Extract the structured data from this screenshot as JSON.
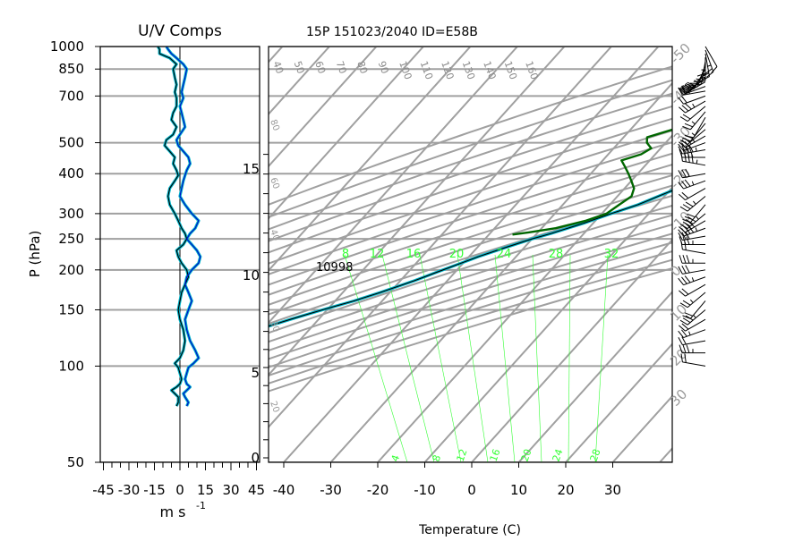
{
  "header": {
    "title": "15P 151023/2040 ID=E58B",
    "uv_title": "U/V Comps"
  },
  "chart_data": [
    {
      "type": "line",
      "name": "uv_components",
      "title": "U/V Comps",
      "ylabel": "P (hPa)",
      "xlabel": "m s",
      "xlabel_unit_superscript": "-1",
      "y_scale": "log",
      "ylim": [
        1000,
        50
      ],
      "xlim": [
        -45,
        45
      ],
      "y_ticks": [
        50,
        100,
        150,
        200,
        250,
        300,
        400,
        500,
        700,
        850,
        1000
      ],
      "x_ticks": [
        -45,
        -30,
        -15,
        0,
        15,
        30,
        45
      ],
      "x_tick_labels": [
        "-45",
        "-30",
        "-15",
        "0",
        "15",
        "30",
        "45"
      ],
      "grid": "horizontal at labeled pressures",
      "colors": {
        "u": "#000000",
        "v": "#0000cc",
        "highlight": "#00b4c8"
      },
      "series": [
        {
          "id": "u",
          "color": "#000000",
          "points": [
            [
              -13,
              1000
            ],
            [
              -12,
              980
            ],
            [
              -12,
              950
            ],
            [
              -6,
              920
            ],
            [
              -2,
              880
            ],
            [
              -4,
              850
            ],
            [
              -3,
              800
            ],
            [
              -2,
              760
            ],
            [
              -3,
              720
            ],
            [
              -2,
              690
            ],
            [
              -2,
              650
            ],
            [
              -4,
              620
            ],
            [
              -5,
              590
            ],
            [
              -2,
              560
            ],
            [
              -4,
              530
            ],
            [
              -8,
              510
            ],
            [
              -9,
              490
            ],
            [
              -6,
              470
            ],
            [
              -3,
              450
            ],
            [
              -4,
              430
            ],
            [
              -2,
              410
            ],
            [
              -1,
              395
            ],
            [
              -3,
              380
            ],
            [
              -6,
              360
            ],
            [
              -7,
              340
            ],
            [
              -6,
              320
            ],
            [
              -3,
              300
            ],
            [
              -1,
              285
            ],
            [
              1,
              270
            ],
            [
              3,
              260
            ],
            [
              4,
              250
            ],
            [
              2,
              240
            ],
            [
              -2,
              230
            ],
            [
              -1,
              220
            ],
            [
              1,
              210
            ],
            [
              4,
              200
            ],
            [
              5,
              190
            ],
            [
              3,
              180
            ],
            [
              1,
              170
            ],
            [
              0,
              160
            ],
            [
              -1,
              150
            ],
            [
              0,
              140
            ],
            [
              2,
              130
            ],
            [
              3,
              120
            ],
            [
              2,
              112
            ],
            [
              0,
              106
            ],
            [
              -3,
              102
            ],
            [
              -1,
              99
            ],
            [
              0,
              95
            ],
            [
              1,
              91
            ],
            [
              0,
              88
            ],
            [
              -2,
              86
            ],
            [
              -5,
              84
            ],
            [
              -3,
              82
            ],
            [
              -1,
              80
            ],
            [
              -1,
              77
            ],
            [
              -2,
              75
            ]
          ]
        },
        {
          "id": "v",
          "color": "#0000cc",
          "points": [
            [
              -8,
              1000
            ],
            [
              -7,
              980
            ],
            [
              -5,
              950
            ],
            [
              -2,
              920
            ],
            [
              0,
              900
            ],
            [
              2,
              880
            ],
            [
              4,
              850
            ],
            [
              3,
              800
            ],
            [
              2,
              760
            ],
            [
              1,
              720
            ],
            [
              2,
              690
            ],
            [
              0,
              650
            ],
            [
              1,
              620
            ],
            [
              2,
              590
            ],
            [
              3,
              560
            ],
            [
              0,
              530
            ],
            [
              -2,
              510
            ],
            [
              -1,
              490
            ],
            [
              2,
              470
            ],
            [
              5,
              450
            ],
            [
              6,
              430
            ],
            [
              4,
              410
            ],
            [
              3,
              395
            ],
            [
              2,
              380
            ],
            [
              1,
              360
            ],
            [
              0,
              340
            ],
            [
              3,
              320
            ],
            [
              7,
              300
            ],
            [
              11,
              285
            ],
            [
              9,
              270
            ],
            [
              6,
              260
            ],
            [
              4,
              250
            ],
            [
              7,
              240
            ],
            [
              10,
              230
            ],
            [
              12,
              220
            ],
            [
              11,
              210
            ],
            [
              7,
              200
            ],
            [
              4,
              190
            ],
            [
              3,
              180
            ],
            [
              5,
              170
            ],
            [
              7,
              160
            ],
            [
              5,
              150
            ],
            [
              3,
              140
            ],
            [
              4,
              130
            ],
            [
              6,
              120
            ],
            [
              9,
              112
            ],
            [
              11,
              106
            ],
            [
              8,
              102
            ],
            [
              5,
              99
            ],
            [
              4,
              95
            ],
            [
              3,
              91
            ],
            [
              4,
              88
            ],
            [
              6,
              86
            ],
            [
              4,
              84
            ],
            [
              2,
              82
            ],
            [
              3,
              80
            ],
            [
              5,
              77
            ],
            [
              4,
              75
            ]
          ]
        }
      ]
    },
    {
      "type": "line",
      "name": "skewt_sounding",
      "title": "15P 151023/2040 ID=E58B",
      "xlabel": "Temperature (C)",
      "y2label": "",
      "y_scale": "log",
      "ylim": [
        1000,
        50
      ],
      "xlim": [
        -40,
        30
      ],
      "x_ticks": [
        -40,
        -30,
        -20,
        -10,
        0,
        10,
        20,
        30
      ],
      "x_tick_labels": [
        "-40",
        "-30",
        "-20",
        "-10",
        "0",
        "10",
        "20",
        "30"
      ],
      "left_height_ticks_km": [
        0,
        5,
        10,
        15
      ],
      "left_height_tick_labels": [
        "0",
        "5",
        "10",
        "15"
      ],
      "height_annotation": "10998",
      "theta_labels": [
        "40",
        "50",
        "60",
        "70",
        "80",
        "90",
        "100",
        "110",
        "120",
        "130",
        "140",
        "150",
        "160"
      ],
      "mixing_ratio_labels_top": [
        "8",
        "12",
        "16",
        "20",
        "24",
        "28",
        "32"
      ],
      "mixing_ratio_labels_bottom": [
        "4",
        "8",
        "12",
        "16",
        "20",
        "24",
        "28"
      ],
      "skewed_isotherm_labels": [
        "-50",
        "-40",
        "-30",
        "-20",
        "-10",
        "0",
        "10",
        "20",
        "30"
      ],
      "moist_adiabat_labels": [
        "80",
        "60",
        "40",
        "30",
        "20"
      ],
      "colors": {
        "grid": "#a0a0a0",
        "mixing_ratio": "#33ff33",
        "temperature": "#000000",
        "temperature_highlight": "#00b4c8",
        "parcel": "#006600"
      },
      "series": [
        {
          "id": "temperature",
          "color": "#000000",
          "points": [
            [
              26,
              1000
            ],
            [
              23,
              970
            ],
            [
              22,
              950
            ],
            [
              25,
              920
            ],
            [
              24,
              900
            ],
            [
              21,
              870
            ],
            [
              20,
              850
            ],
            [
              18,
              800
            ],
            [
              16,
              750
            ],
            [
              14,
              700
            ],
            [
              11,
              650
            ],
            [
              9,
              600
            ],
            [
              6,
              550
            ],
            [
              2,
              500
            ],
            [
              -2,
              450
            ],
            [
              -5,
              400
            ],
            [
              -6,
              380
            ],
            [
              -10,
              350
            ],
            [
              -14,
              320
            ],
            [
              -18,
              300
            ],
            [
              -22,
              280
            ],
            [
              -27,
              260
            ],
            [
              -30,
              250
            ],
            [
              -34,
              235
            ],
            [
              -38,
              220
            ],
            [
              -43,
              200
            ],
            [
              -47,
              185
            ],
            [
              -52,
              170
            ],
            [
              -56,
              160
            ],
            [
              -61,
              150
            ],
            [
              -66,
              140
            ],
            [
              -71,
              130
            ],
            [
              -75,
              120
            ],
            [
              -78,
              110
            ],
            [
              -80,
              100
            ],
            [
              -82,
              98
            ],
            [
              -82,
              95
            ],
            [
              -78,
              92
            ],
            [
              -75,
              90
            ],
            [
              -72,
              87
            ],
            [
              -70,
              84
            ],
            [
              -66,
              80
            ],
            [
              -62,
              77
            ],
            [
              -60,
              75
            ],
            [
              -57,
              73
            ],
            [
              -55,
              72
            ]
          ]
        },
        {
          "id": "parcel",
          "color": "#006600",
          "points": [
            [
              20,
              1000
            ],
            [
              19,
              980
            ],
            [
              18,
              950
            ],
            [
              20,
              930
            ],
            [
              18,
              910
            ],
            [
              19,
              890
            ],
            [
              18,
              870
            ],
            [
              17,
              850
            ],
            [
              15,
              830
            ],
            [
              5,
              810
            ],
            [
              -5,
              800
            ],
            [
              -12,
              790
            ],
            [
              -17,
              770
            ],
            [
              -19,
              740
            ],
            [
              -21,
              700
            ],
            [
              -22,
              660
            ],
            [
              -22,
              620
            ],
            [
              -18,
              590
            ],
            [
              -17,
              570
            ],
            [
              -21,
              550
            ],
            [
              -25,
              520
            ],
            [
              -24,
              500
            ],
            [
              -22,
              480
            ],
            [
              -23,
              460
            ],
            [
              -26,
              440
            ],
            [
              -24,
              420
            ],
            [
              -22,
              400
            ],
            [
              -20,
              380
            ],
            [
              -18,
              360
            ],
            [
              -17,
              340
            ],
            [
              -18,
              320
            ],
            [
              -19,
              300
            ],
            [
              -22,
              285
            ],
            [
              -27,
              270
            ],
            [
              -32,
              262
            ],
            [
              -35,
              258
            ]
          ]
        }
      ]
    }
  ],
  "wind_barbs": {
    "levels_hPa": [
      1000,
      975,
      950,
      925,
      900,
      875,
      850,
      825,
      800,
      775,
      750,
      725,
      700,
      675,
      650,
      625,
      600,
      575,
      550,
      525,
      500,
      475,
      450,
      425,
      400,
      380,
      360,
      340,
      320,
      300,
      285,
      270,
      255,
      240,
      225,
      210,
      200,
      190,
      180,
      170,
      160,
      150,
      140,
      130,
      120,
      110,
      100
    ],
    "speeds_kt": [
      10,
      15,
      20,
      25,
      20,
      15,
      20,
      25,
      30,
      25,
      20,
      15,
      20,
      25,
      20,
      15,
      10,
      15,
      20,
      25,
      30,
      35,
      40,
      35,
      30,
      25,
      20,
      25,
      30,
      35,
      40,
      35,
      30,
      25,
      20,
      25,
      30,
      25,
      20,
      15,
      20,
      25,
      20,
      15,
      20,
      25,
      20
    ],
    "direction_deg": [
      150,
      160,
      170,
      180,
      190,
      200,
      210,
      220,
      230,
      240,
      250,
      260,
      250,
      240,
      230,
      220,
      210,
      220,
      230,
      240,
      250,
      260,
      270,
      280,
      260,
      250,
      240,
      230,
      220,
      230,
      240,
      250,
      260,
      270,
      280,
      270,
      260,
      250,
      240,
      230,
      220,
      230,
      240,
      250,
      260,
      270,
      280
    ]
  }
}
